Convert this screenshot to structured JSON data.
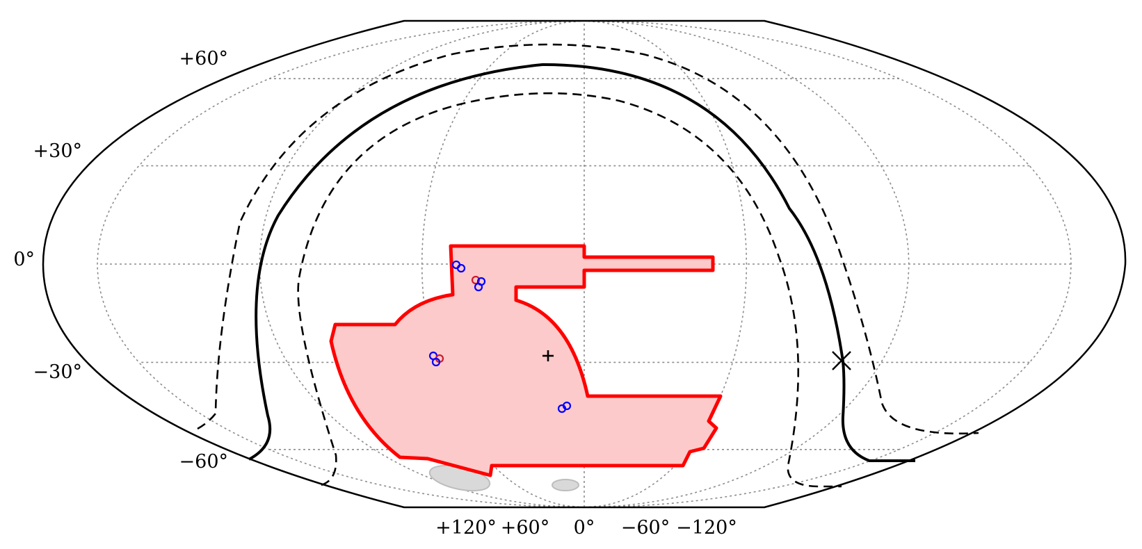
{
  "map": {
    "projection": "mollweide",
    "lat_labels": [
      "+60°",
      "+30°",
      "0°",
      "−30°",
      "−60°"
    ],
    "lon_labels": [
      "+120°",
      "+60°",
      "0°",
      "−60°",
      "−120°"
    ],
    "colors": {
      "footprint_edge": "#ff0000",
      "footprint_fill": "#fccaca",
      "marker_blue": "#0000ff",
      "marker_red": "#cc1a2e",
      "grid": "#8c8c8c",
      "magellanic_clouds": "#d9d9d9"
    },
    "features": [
      "survey-footprint",
      "galactic-plane-solid",
      "galactic-plane-dashed-bounds",
      "south-galactic-pole-cross",
      "plus-marker",
      "field-circles",
      "magellanic-clouds"
    ]
  }
}
